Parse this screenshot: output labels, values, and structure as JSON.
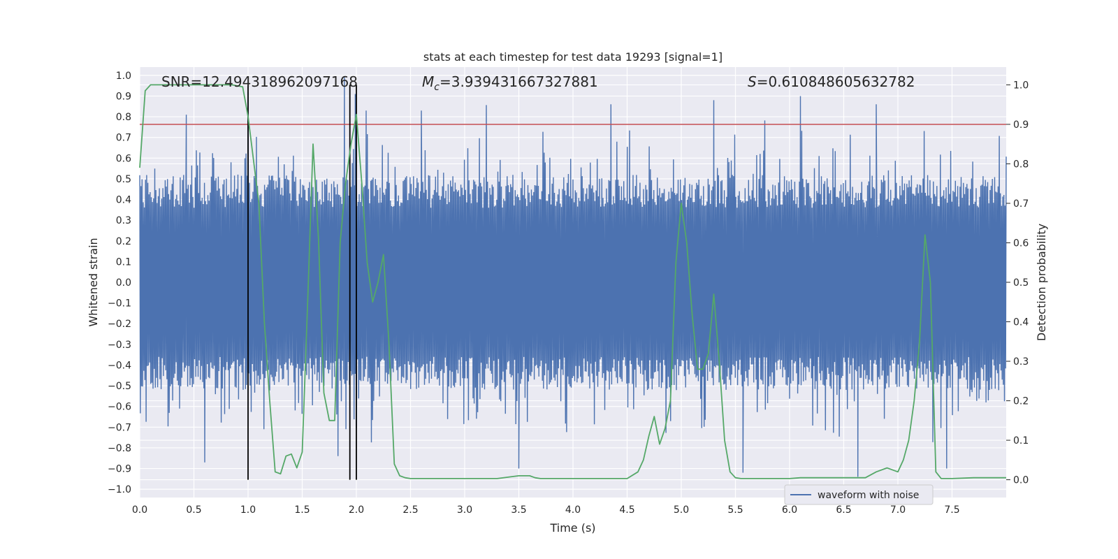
{
  "chart_data": {
    "type": "line",
    "title": "stats at each timestep for test data 19293 [signal=1]",
    "xlabel": "Time (s)",
    "ylabel": "Whitened strain",
    "y2label": "Detection probability",
    "xlim": [
      0.0,
      8.0
    ],
    "ylim": [
      -1.04,
      1.04
    ],
    "y2lim": [
      -0.045,
      1.045
    ],
    "x_ticks": [
      "0.0",
      "0.5",
      "1.0",
      "1.5",
      "2.0",
      "2.5",
      "3.0",
      "3.5",
      "4.0",
      "4.5",
      "5.0",
      "5.5",
      "6.0",
      "6.5",
      "7.0",
      "7.5"
    ],
    "y_ticks": [
      "1.0",
      "0.9",
      "0.8",
      "0.7",
      "0.6",
      "0.5",
      "0.4",
      "0.3",
      "0.2",
      "0.1",
      "0.0",
      "-0.1",
      "-0.2",
      "-0.3",
      "-0.4",
      "-0.5",
      "-0.6",
      "-0.7",
      "-0.8",
      "-0.9",
      "-1.0"
    ],
    "y2_ticks": [
      "1.0",
      "0.9",
      "0.8",
      "0.7",
      "0.6",
      "0.5",
      "0.4",
      "0.3",
      "0.2",
      "0.1",
      "0.0"
    ],
    "grid": true,
    "legend_position": "lower right",
    "annotations": {
      "snr": "SNR=12.494318962097168",
      "mc_symbol": "M",
      "mc_sub": "c",
      "mc_value": "=3.939431667327881",
      "s_symbol": "S",
      "s_value": "=0.610848605632782"
    },
    "series": [
      {
        "name": "waveform with noise",
        "axis": "left",
        "color": "#4c72b0",
        "envelope_min": -0.95,
        "envelope_max": 1.0,
        "peaks": [
          {
            "x": 0.43,
            "y": 0.81
          },
          {
            "x": 1.0,
            "y": 0.92
          },
          {
            "x": 1.89,
            "y": 0.99
          },
          {
            "x": 1.99,
            "y": 0.91
          },
          {
            "x": 2.09,
            "y": 0.83
          },
          {
            "x": 2.6,
            "y": 0.83
          },
          {
            "x": 4.35,
            "y": 0.86
          },
          {
            "x": 5.3,
            "y": 0.88
          },
          {
            "x": 6.1,
            "y": 0.9
          },
          {
            "x": 6.8,
            "y": 0.86
          },
          {
            "x": 0.6,
            "y": -0.87
          },
          {
            "x": 1.83,
            "y": -0.84
          },
          {
            "x": 3.5,
            "y": -0.9
          },
          {
            "x": 5.57,
            "y": -0.92
          },
          {
            "x": 6.63,
            "y": -0.94
          },
          {
            "x": 7.45,
            "y": -0.9
          }
        ]
      },
      {
        "name": "",
        "axis": "right",
        "color": "#55a868",
        "x": [
          0.0,
          0.05,
          0.1,
          0.15,
          0.5,
          0.85,
          0.95,
          1.0,
          1.1,
          1.15,
          1.2,
          1.25,
          1.3,
          1.35,
          1.4,
          1.45,
          1.5,
          1.55,
          1.6,
          1.65,
          1.7,
          1.75,
          1.8,
          1.85,
          1.9,
          1.95,
          2.0,
          2.05,
          2.1,
          2.15,
          2.2,
          2.25,
          2.3,
          2.35,
          2.4,
          2.45,
          2.5,
          2.6,
          3.0,
          3.3,
          3.5,
          3.6,
          3.65,
          3.7,
          3.8,
          4.0,
          4.2,
          4.5,
          4.6,
          4.65,
          4.7,
          4.75,
          4.8,
          4.85,
          4.9,
          4.95,
          5.0,
          5.05,
          5.1,
          5.15,
          5.2,
          5.25,
          5.3,
          5.35,
          5.4,
          5.45,
          5.5,
          5.55,
          5.6,
          5.65,
          5.7,
          6.0,
          6.1,
          6.2,
          6.5,
          6.7,
          6.8,
          6.9,
          7.0,
          7.05,
          7.1,
          7.15,
          7.2,
          7.25,
          7.3,
          7.35,
          7.4,
          7.45,
          7.5,
          7.7,
          8.0
        ],
        "y": [
          0.79,
          0.985,
          1.0,
          1.0,
          1.0,
          1.0,
          0.995,
          0.92,
          0.7,
          0.4,
          0.2,
          0.02,
          0.015,
          0.06,
          0.065,
          0.03,
          0.07,
          0.45,
          0.85,
          0.61,
          0.22,
          0.15,
          0.15,
          0.6,
          0.75,
          0.85,
          0.925,
          0.75,
          0.55,
          0.45,
          0.5,
          0.57,
          0.35,
          0.04,
          0.01,
          0.005,
          0.003,
          0.003,
          0.003,
          0.003,
          0.01,
          0.01,
          0.005,
          0.003,
          0.003,
          0.003,
          0.003,
          0.003,
          0.02,
          0.05,
          0.11,
          0.16,
          0.09,
          0.13,
          0.2,
          0.55,
          0.7,
          0.6,
          0.42,
          0.28,
          0.28,
          0.32,
          0.47,
          0.3,
          0.1,
          0.02,
          0.005,
          0.003,
          0.003,
          0.003,
          0.003,
          0.003,
          0.005,
          0.005,
          0.005,
          0.005,
          0.02,
          0.03,
          0.02,
          0.05,
          0.1,
          0.2,
          0.35,
          0.62,
          0.5,
          0.02,
          0.003,
          0.003,
          0.003,
          0.005,
          0.005
        ]
      },
      {
        "name": "",
        "axis": "right",
        "kind": "threshold",
        "color": "#c44e52",
        "value": 0.9
      }
    ],
    "vertical_lines": [
      1.0,
      1.94,
      2.0
    ],
    "vertical_lines_color": "#000000"
  }
}
